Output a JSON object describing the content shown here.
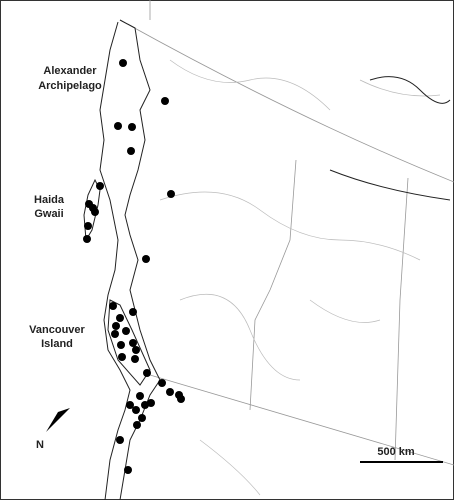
{
  "labels": [
    {
      "lines": [
        "Alexander",
        "Archipelago"
      ]
    },
    {
      "lines": [
        "Haida",
        "Gwaii"
      ]
    },
    {
      "lines": [
        "Vancouver",
        "Island"
      ]
    }
  ],
  "north_arrow": {
    "label": "N"
  },
  "scale_bar": {
    "label": "500 km"
  }
}
